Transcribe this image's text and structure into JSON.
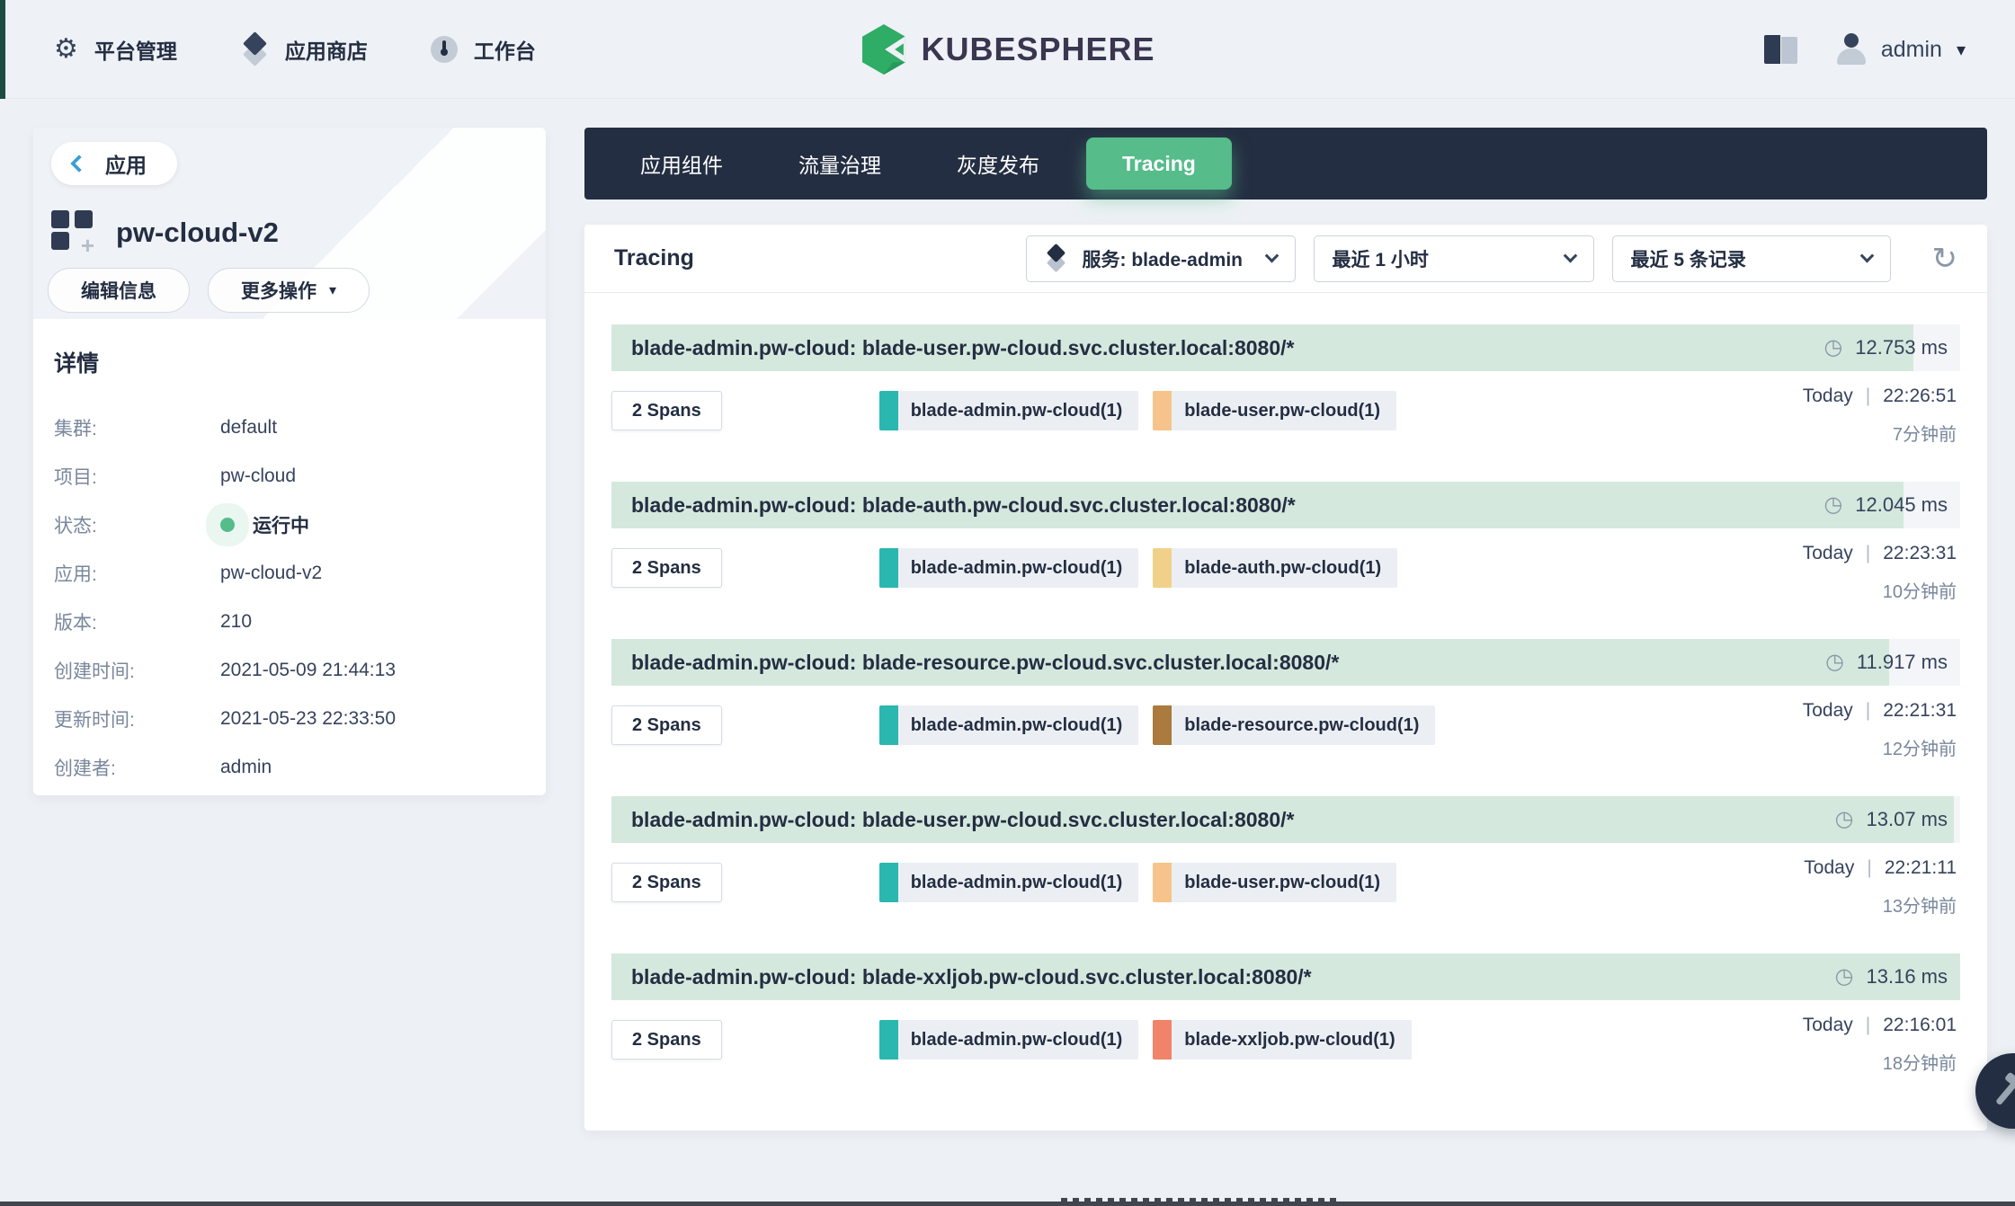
{
  "header": {
    "nav": [
      {
        "icon": "gear-icon",
        "label": "平台管理"
      },
      {
        "icon": "appstore-icon",
        "label": "应用商店"
      },
      {
        "icon": "workbench-icon",
        "label": "工作台"
      }
    ],
    "logo_text": "KUBESPHERE",
    "user": "admin"
  },
  "sidebar": {
    "back_label": "应用",
    "app_title": "pw-cloud-v2",
    "edit_button": "编辑信息",
    "more_button": "更多操作",
    "details_title": "详情",
    "details": [
      {
        "label": "集群:",
        "value": "default"
      },
      {
        "label": "项目:",
        "value": "pw-cloud"
      },
      {
        "label": "状态:",
        "value": "运行中"
      },
      {
        "label": "应用:",
        "value": "pw-cloud-v2"
      },
      {
        "label": "版本:",
        "value": "210"
      },
      {
        "label": "创建时间:",
        "value": "2021-05-09 21:44:13"
      },
      {
        "label": "更新时间:",
        "value": "2021-05-23 22:33:50"
      },
      {
        "label": "创建者:",
        "value": "admin"
      }
    ]
  },
  "tabs": [
    {
      "label": "应用组件",
      "active": false
    },
    {
      "label": "流量治理",
      "active": false
    },
    {
      "label": "灰度发布",
      "active": false
    },
    {
      "label": "Tracing",
      "active": true
    }
  ],
  "tracing": {
    "title": "Tracing",
    "filters": {
      "service": "服务: blade-admin",
      "range": "最近 1 小时",
      "limit": "最近 5 条记录"
    },
    "traces": [
      {
        "title": "blade-admin.pw-cloud: blade-user.pw-cloud.svc.cluster.local:8080/*",
        "duration": "12.753 ms",
        "bar_percent": 96.5,
        "spans": "2 Spans",
        "services": [
          {
            "name": "blade-admin.pw-cloud(1)",
            "color": "#2ab7b0"
          },
          {
            "name": "blade-user.pw-cloud(1)",
            "color": "#f6c48b"
          }
        ],
        "date": "Today",
        "time": "22:26:51",
        "ago": "7分钟前"
      },
      {
        "title": "blade-admin.pw-cloud: blade-auth.pw-cloud.svc.cluster.local:8080/*",
        "duration": "12.045 ms",
        "bar_percent": 95.8,
        "spans": "2 Spans",
        "services": [
          {
            "name": "blade-admin.pw-cloud(1)",
            "color": "#2ab7b0"
          },
          {
            "name": "blade-auth.pw-cloud(1)",
            "color": "#f1d189"
          }
        ],
        "date": "Today",
        "time": "22:23:31",
        "ago": "10分钟前"
      },
      {
        "title": "blade-admin.pw-cloud: blade-resource.pw-cloud.svc.cluster.local:8080/*",
        "duration": "11.917 ms",
        "bar_percent": 94.7,
        "spans": "2 Spans",
        "services": [
          {
            "name": "blade-admin.pw-cloud(1)",
            "color": "#2ab7b0"
          },
          {
            "name": "blade-resource.pw-cloud(1)",
            "color": "#aa7a3f"
          }
        ],
        "date": "Today",
        "time": "22:21:31",
        "ago": "12分钟前"
      },
      {
        "title": "blade-admin.pw-cloud: blade-user.pw-cloud.svc.cluster.local:8080/*",
        "duration": "13.07 ms",
        "bar_percent": 99.5,
        "spans": "2 Spans",
        "services": [
          {
            "name": "blade-admin.pw-cloud(1)",
            "color": "#2ab7b0"
          },
          {
            "name": "blade-user.pw-cloud(1)",
            "color": "#f6c48b"
          }
        ],
        "date": "Today",
        "time": "22:21:11",
        "ago": "13分钟前"
      },
      {
        "title": "blade-admin.pw-cloud: blade-xxljob.pw-cloud.svc.cluster.local:8080/*",
        "duration": "13.16 ms",
        "bar_percent": 100,
        "spans": "2 Spans",
        "services": [
          {
            "name": "blade-admin.pw-cloud(1)",
            "color": "#2ab7b0"
          },
          {
            "name": "blade-xxljob.pw-cloud(1)",
            "color": "#f0836a"
          }
        ],
        "date": "Today",
        "time": "22:16:01",
        "ago": "18分钟前"
      }
    ]
  },
  "colors": {
    "accent_green": "#55bc8a",
    "navy": "#242e42",
    "trace_bar_fill": "#d5e8dd",
    "status_running": "#55bc8a"
  }
}
